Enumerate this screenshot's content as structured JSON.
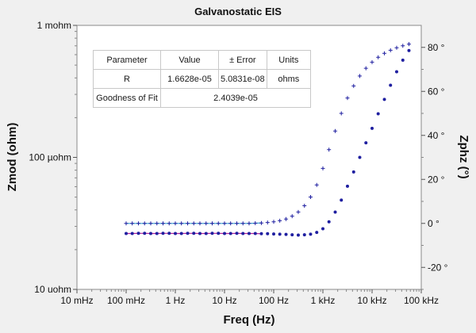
{
  "chart_data": {
    "type": "scatter",
    "title": "Galvanostatic EIS",
    "xlabel": "Freq (Hz)",
    "ylabel": "Zmod (ohm)",
    "y2label": "Zphz (°)",
    "xscale": "log",
    "yscale": "log",
    "xlim": [
      0.01,
      100000
    ],
    "ylim": [
      1e-05,
      0.001
    ],
    "y2lim": [
      -30,
      90
    ],
    "x_tick_labels": [
      "10 mHz",
      "100 mHz",
      "1 Hz",
      "10 Hz",
      "100 Hz",
      "1 kHz",
      "10 kHz",
      "100 kHz"
    ],
    "y_tick_labels": [
      "10 uohm",
      "100 µohm",
      "1 mohm"
    ],
    "y2_tick_labels": [
      "-20 °",
      "0 °",
      "20 °",
      "40 °",
      "60 °",
      "80 °"
    ],
    "grid": false,
    "series": [
      {
        "axis": "left",
        "marker": "dot",
        "color": "#1f1fa0",
        "fit_color": "#b0209a",
        "x": [
          0.1,
          0.133,
          0.178,
          0.237,
          0.316,
          0.422,
          0.562,
          0.75,
          1,
          1.33,
          1.78,
          2.37,
          3.16,
          4.22,
          5.62,
          7.5,
          10,
          13.3,
          17.8,
          23.7,
          31.6,
          42.2,
          56.2,
          75,
          100,
          133,
          178,
          237,
          316,
          422,
          562,
          750,
          1000,
          1330,
          1780,
          2370,
          3160,
          4220,
          5620,
          7500,
          10000,
          13300,
          17800,
          23700,
          31600,
          42200,
          56200
        ],
        "y": [
          2.65e-05,
          2.65e-05,
          2.66e-05,
          2.66e-05,
          2.65e-05,
          2.65e-05,
          2.66e-05,
          2.66e-05,
          2.65e-05,
          2.65e-05,
          2.66e-05,
          2.66e-05,
          2.65e-05,
          2.65e-05,
          2.66e-05,
          2.66e-05,
          2.65e-05,
          2.65e-05,
          2.66e-05,
          2.65e-05,
          2.65e-05,
          2.65e-05,
          2.64e-05,
          2.64e-05,
          2.63e-05,
          2.62e-05,
          2.61e-05,
          2.59e-05,
          2.58e-05,
          2.59e-05,
          2.62e-05,
          2.7e-05,
          2.88e-05,
          3.25e-05,
          3.85e-05,
          4.75e-05,
          6.05e-05,
          7.75e-05,
          0.0001,
          0.000129,
          0.000166,
          0.000214,
          0.000275,
          0.000352,
          0.000445,
          0.000545,
          0.000645
        ]
      },
      {
        "axis": "right",
        "marker": "plus",
        "color": "#1f1fa0",
        "fit_color": "#35a5cf",
        "x": [
          0.1,
          0.133,
          0.178,
          0.237,
          0.316,
          0.422,
          0.562,
          0.75,
          1,
          1.33,
          1.78,
          2.37,
          3.16,
          4.22,
          5.62,
          7.5,
          10,
          13.3,
          17.8,
          23.7,
          31.6,
          42.2,
          56.2,
          75,
          100,
          133,
          178,
          237,
          316,
          422,
          562,
          750,
          1000,
          1330,
          1780,
          2370,
          3160,
          4220,
          5620,
          7500,
          10000,
          13300,
          17800,
          23700,
          31600,
          42200,
          56200
        ],
        "y": [
          0,
          0,
          0,
          0,
          0,
          0,
          0,
          0,
          0,
          0,
          0,
          0,
          0,
          0,
          0,
          0,
          0,
          0,
          0,
          0,
          0,
          0.1,
          0.2,
          0.4,
          0.7,
          1.2,
          2,
          3.3,
          5.2,
          8,
          12,
          17.5,
          25,
          33.5,
          42,
          50,
          57,
          62.5,
          67,
          70.5,
          73.3,
          75.5,
          77.3,
          78.7,
          79.8,
          80.7,
          81.5
        ]
      }
    ]
  },
  "fit_table": {
    "headers": [
      "Parameter",
      "Value",
      "± Error",
      "Units"
    ],
    "rows": [
      [
        "R",
        "1.6628e-05",
        "5.0831e-08",
        "ohms"
      ]
    ],
    "gof_label": "Goodness of Fit",
    "gof_value": "2.4039e-05"
  },
  "colors": {
    "background": "#f0f0f0",
    "plot_area": "#ffffff",
    "data": "#1f1fa0",
    "fit_magnitude": "#b0209a",
    "fit_phase": "#35a5cf"
  }
}
